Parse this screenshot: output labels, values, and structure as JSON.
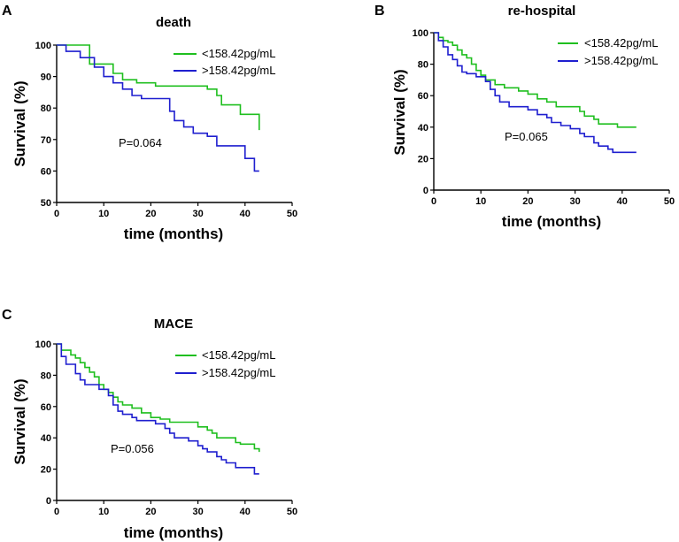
{
  "colors": {
    "low_group": "#1fbf1f",
    "high_group": "#1f1fcf"
  },
  "chart_data": [
    {
      "panel": "A",
      "type": "line",
      "title": "death",
      "xlabel": "time (months)",
      "ylabel": "Survival (%)",
      "xlim": [
        0,
        50
      ],
      "ylim": [
        50,
        100
      ],
      "xticks": [
        0,
        10,
        20,
        30,
        40,
        50
      ],
      "yticks": [
        50,
        60,
        70,
        80,
        90,
        100
      ],
      "annotation": "P=0.064",
      "legend_position": "top-right",
      "series": [
        {
          "name": "<158.42pg/mL",
          "color_key": "low_group",
          "steps": [
            [
              0,
              100
            ],
            [
              7,
              100
            ],
            [
              7,
              94
            ],
            [
              12,
              94
            ],
            [
              12,
              91
            ],
            [
              14,
              91
            ],
            [
              14,
              89
            ],
            [
              17,
              89
            ],
            [
              17,
              88
            ],
            [
              21,
              88
            ],
            [
              21,
              87
            ],
            [
              32,
              87
            ],
            [
              32,
              86
            ],
            [
              34,
              86
            ],
            [
              34,
              84
            ],
            [
              35,
              84
            ],
            [
              35,
              81
            ],
            [
              39,
              81
            ],
            [
              39,
              78
            ],
            [
              43,
              78
            ],
            [
              43,
              73
            ]
          ]
        },
        {
          "name": ">158.42pg/mL",
          "color_key": "high_group",
          "steps": [
            [
              0,
              100
            ],
            [
              2,
              100
            ],
            [
              2,
              98
            ],
            [
              5,
              98
            ],
            [
              5,
              96
            ],
            [
              8,
              96
            ],
            [
              8,
              93
            ],
            [
              10,
              93
            ],
            [
              10,
              90
            ],
            [
              12,
              90
            ],
            [
              12,
              88
            ],
            [
              14,
              88
            ],
            [
              14,
              86
            ],
            [
              16,
              86
            ],
            [
              16,
              84
            ],
            [
              18,
              84
            ],
            [
              18,
              83
            ],
            [
              24,
              83
            ],
            [
              24,
              79
            ],
            [
              25,
              79
            ],
            [
              25,
              76
            ],
            [
              27,
              76
            ],
            [
              27,
              74
            ],
            [
              29,
              74
            ],
            [
              29,
              72
            ],
            [
              32,
              72
            ],
            [
              32,
              71
            ],
            [
              34,
              71
            ],
            [
              34,
              68
            ],
            [
              40,
              68
            ],
            [
              40,
              64
            ],
            [
              42,
              64
            ],
            [
              42,
              60
            ],
            [
              43,
              60
            ]
          ]
        }
      ]
    },
    {
      "panel": "B",
      "type": "line",
      "title": "re-hospital",
      "xlabel": "time (months)",
      "ylabel": "Survival (%)",
      "xlim": [
        0,
        50
      ],
      "ylim": [
        0,
        100
      ],
      "xticks": [
        0,
        10,
        20,
        30,
        40,
        50
      ],
      "yticks": [
        0,
        20,
        40,
        60,
        80,
        100
      ],
      "annotation": "P=0.065",
      "legend_position": "top-right",
      "series": [
        {
          "name": "<158.42pg/mL",
          "color_key": "low_group",
          "steps": [
            [
              0,
              100
            ],
            [
              1,
              100
            ],
            [
              1,
              97
            ],
            [
              2,
              97
            ],
            [
              2,
              95
            ],
            [
              3,
              95
            ],
            [
              3,
              94
            ],
            [
              4,
              94
            ],
            [
              4,
              92
            ],
            [
              5,
              92
            ],
            [
              5,
              89
            ],
            [
              6,
              89
            ],
            [
              6,
              86
            ],
            [
              7,
              86
            ],
            [
              7,
              84
            ],
            [
              8,
              84
            ],
            [
              8,
              80
            ],
            [
              9,
              80
            ],
            [
              9,
              76
            ],
            [
              10,
              76
            ],
            [
              10,
              73
            ],
            [
              11,
              73
            ],
            [
              11,
              70
            ],
            [
              13,
              70
            ],
            [
              13,
              67
            ],
            [
              15,
              67
            ],
            [
              15,
              65
            ],
            [
              18,
              65
            ],
            [
              18,
              63
            ],
            [
              20,
              63
            ],
            [
              20,
              61
            ],
            [
              22,
              61
            ],
            [
              22,
              58
            ],
            [
              24,
              58
            ],
            [
              24,
              56
            ],
            [
              26,
              56
            ],
            [
              26,
              53
            ],
            [
              31,
              53
            ],
            [
              31,
              50
            ],
            [
              32,
              50
            ],
            [
              32,
              47
            ],
            [
              34,
              47
            ],
            [
              34,
              45
            ],
            [
              35,
              45
            ],
            [
              35,
              42
            ],
            [
              39,
              42
            ],
            [
              39,
              40
            ],
            [
              43,
              40
            ]
          ]
        },
        {
          "name": ">158.42pg/mL",
          "color_key": "high_group",
          "steps": [
            [
              0,
              100
            ],
            [
              1,
              100
            ],
            [
              1,
              95
            ],
            [
              2,
              95
            ],
            [
              2,
              91
            ],
            [
              3,
              91
            ],
            [
              3,
              86
            ],
            [
              4,
              86
            ],
            [
              4,
              83
            ],
            [
              5,
              83
            ],
            [
              5,
              79
            ],
            [
              6,
              79
            ],
            [
              6,
              75
            ],
            [
              7,
              75
            ],
            [
              7,
              74
            ],
            [
              9,
              74
            ],
            [
              9,
              72
            ],
            [
              11,
              72
            ],
            [
              11,
              69
            ],
            [
              12,
              69
            ],
            [
              12,
              64
            ],
            [
              13,
              64
            ],
            [
              13,
              60
            ],
            [
              14,
              60
            ],
            [
              14,
              56
            ],
            [
              16,
              56
            ],
            [
              16,
              53
            ],
            [
              20,
              53
            ],
            [
              20,
              51
            ],
            [
              22,
              51
            ],
            [
              22,
              48
            ],
            [
              24,
              48
            ],
            [
              24,
              46
            ],
            [
              25,
              46
            ],
            [
              25,
              43
            ],
            [
              27,
              43
            ],
            [
              27,
              41
            ],
            [
              29,
              41
            ],
            [
              29,
              39
            ],
            [
              31,
              39
            ],
            [
              31,
              36
            ],
            [
              32,
              36
            ],
            [
              32,
              34
            ],
            [
              34,
              34
            ],
            [
              34,
              30
            ],
            [
              35,
              30
            ],
            [
              35,
              28
            ],
            [
              37,
              28
            ],
            [
              37,
              26
            ],
            [
              38,
              26
            ],
            [
              38,
              24
            ],
            [
              43,
              24
            ]
          ]
        }
      ]
    },
    {
      "panel": "C",
      "type": "line",
      "title": "MACE",
      "xlabel": "time (months)",
      "ylabel": "Survival (%)",
      "xlim": [
        0,
        50
      ],
      "ylim": [
        0,
        100
      ],
      "xticks": [
        0,
        10,
        20,
        30,
        40,
        50
      ],
      "yticks": [
        0,
        20,
        40,
        60,
        80,
        100
      ],
      "annotation": "P=0.056",
      "legend_position": "top-right",
      "series": [
        {
          "name": "<158.42pg/mL",
          "color_key": "low_group",
          "steps": [
            [
              0,
              100
            ],
            [
              1,
              100
            ],
            [
              1,
              96
            ],
            [
              3,
              96
            ],
            [
              3,
              93
            ],
            [
              4,
              93
            ],
            [
              4,
              91
            ],
            [
              5,
              91
            ],
            [
              5,
              88
            ],
            [
              6,
              88
            ],
            [
              6,
              85
            ],
            [
              7,
              85
            ],
            [
              7,
              82
            ],
            [
              8,
              82
            ],
            [
              8,
              79
            ],
            [
              9,
              79
            ],
            [
              9,
              74
            ],
            [
              10,
              74
            ],
            [
              10,
              71
            ],
            [
              11,
              71
            ],
            [
              11,
              69
            ],
            [
              12,
              69
            ],
            [
              12,
              66
            ],
            [
              13,
              66
            ],
            [
              13,
              63
            ],
            [
              14,
              63
            ],
            [
              14,
              61
            ],
            [
              16,
              61
            ],
            [
              16,
              59
            ],
            [
              18,
              59
            ],
            [
              18,
              56
            ],
            [
              20,
              56
            ],
            [
              20,
              53
            ],
            [
              22,
              53
            ],
            [
              22,
              52
            ],
            [
              24,
              52
            ],
            [
              24,
              50
            ],
            [
              30,
              50
            ],
            [
              30,
              47
            ],
            [
              32,
              47
            ],
            [
              32,
              45
            ],
            [
              33,
              45
            ],
            [
              33,
              43
            ],
            [
              34,
              43
            ],
            [
              34,
              40
            ],
            [
              38,
              40
            ],
            [
              38,
              37
            ],
            [
              39,
              37
            ],
            [
              39,
              36
            ],
            [
              42,
              36
            ],
            [
              42,
              33
            ],
            [
              43,
              33
            ],
            [
              43,
              31
            ]
          ]
        },
        {
          "name": ">158.42pg/mL",
          "color_key": "high_group",
          "steps": [
            [
              0,
              100
            ],
            [
              1,
              100
            ],
            [
              1,
              92
            ],
            [
              2,
              92
            ],
            [
              2,
              87
            ],
            [
              4,
              87
            ],
            [
              4,
              81
            ],
            [
              5,
              81
            ],
            [
              5,
              77
            ],
            [
              6,
              77
            ],
            [
              6,
              74
            ],
            [
              9,
              74
            ],
            [
              9,
              71
            ],
            [
              11,
              71
            ],
            [
              11,
              67
            ],
            [
              12,
              67
            ],
            [
              12,
              61
            ],
            [
              13,
              61
            ],
            [
              13,
              57
            ],
            [
              14,
              57
            ],
            [
              14,
              55
            ],
            [
              16,
              55
            ],
            [
              16,
              53
            ],
            [
              17,
              53
            ],
            [
              17,
              51
            ],
            [
              21,
              51
            ],
            [
              21,
              49
            ],
            [
              23,
              49
            ],
            [
              23,
              46
            ],
            [
              24,
              46
            ],
            [
              24,
              43
            ],
            [
              25,
              43
            ],
            [
              25,
              40
            ],
            [
              28,
              40
            ],
            [
              28,
              38
            ],
            [
              30,
              38
            ],
            [
              30,
              35
            ],
            [
              31,
              35
            ],
            [
              31,
              33
            ],
            [
              32,
              33
            ],
            [
              32,
              31
            ],
            [
              34,
              31
            ],
            [
              34,
              28
            ],
            [
              35,
              28
            ],
            [
              35,
              26
            ],
            [
              36,
              26
            ],
            [
              36,
              24
            ],
            [
              38,
              24
            ],
            [
              38,
              21
            ],
            [
              42,
              21
            ],
            [
              42,
              17
            ],
            [
              43,
              17
            ]
          ]
        }
      ]
    }
  ]
}
